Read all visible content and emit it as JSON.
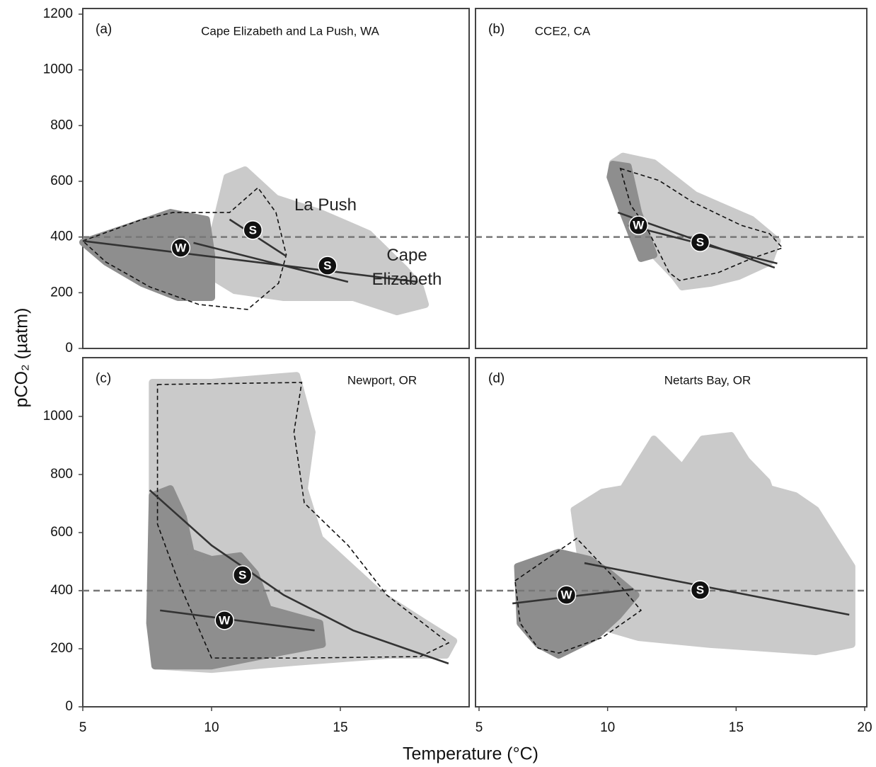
{
  "xlabel": "Temperature (°C)",
  "ylabel": "pCO₂ (µatm)",
  "chart_data": [
    {
      "type": "line",
      "panel": "(a)",
      "title": "Cape Elizabeth and La Push, WA",
      "xlim": [
        5,
        20
      ],
      "ylim": [
        0,
        1200
      ],
      "yticks": [
        0,
        200,
        400,
        600,
        800,
        1000,
        1200
      ],
      "ref_line": 400,
      "annotations": [
        "La Push",
        "Cape Elizabeth"
      ],
      "regions": [
        {
          "color": "#cacaca",
          "x": [
            10.0,
            10.6,
            11.3,
            12.5,
            14.2,
            16.1,
            17.5,
            18.1,
            18.3,
            17.2,
            15.5,
            12.8,
            10.9,
            10.0
          ],
          "y": [
            386,
            615,
            641,
            539,
            488,
            412,
            285,
            221,
            158,
            132,
            183,
            183,
            208,
            259
          ]
        },
        {
          "color": "#8e8e8e",
          "x": [
            5.0,
            6.8,
            8.4,
            9.8,
            10.0,
            10.0,
            8.7,
            7.3,
            5.9
          ],
          "y": [
            381,
            437,
            488,
            463,
            336,
            183,
            183,
            234,
            310
          ]
        }
      ],
      "outline": {
        "x": [
          5.0,
          7.3,
          8.5,
          10.7,
          11.8,
          12.5,
          12.9,
          12.6,
          11.4,
          9.5,
          7.6,
          5.9
        ],
        "y": [
          386,
          463,
          488,
          488,
          577,
          488,
          336,
          234,
          140,
          158,
          221,
          310
        ]
      },
      "lines": [
        {
          "x": [
            5.0,
            18.0
          ],
          "y": [
            386,
            239
          ]
        },
        {
          "x": [
            9.3,
            15.3
          ],
          "y": [
            379,
            239
          ]
        },
        {
          "x": [
            10.7,
            12.9
          ],
          "y": [
            463,
            331
          ]
        }
      ],
      "markers": [
        {
          "label": "W",
          "x": 8.8,
          "y": 361
        },
        {
          "label": "S",
          "x": 14.5,
          "y": 297
        },
        {
          "label": "S",
          "x": 11.6,
          "y": 425
        }
      ]
    },
    {
      "type": "line",
      "panel": "(b)",
      "title": "CCE2, CA",
      "xlim": [
        5,
        20
      ],
      "ylim": [
        0,
        1200
      ],
      "ref_line": 400,
      "annotations": [],
      "regions": [
        {
          "color": "#cacaca",
          "x": [
            10.2,
            10.6,
            11.8,
            13.4,
            15.6,
            16.6,
            16.3,
            15.1,
            14.0,
            12.9,
            12.6,
            11.8,
            10.6,
            10.1
          ],
          "y": [
            666,
            690,
            666,
            551,
            463,
            386,
            310,
            259,
            234,
            221,
            259,
            336,
            514,
            615
          ]
        },
        {
          "color": "#8e8e8e",
          "x": [
            10.2,
            10.8,
            11.2,
            11.8,
            11.3,
            10.6,
            10.1
          ],
          "y": [
            661,
            653,
            488,
            336,
            323,
            488,
            615
          ]
        }
      ],
      "outline": {
        "x": [
          10.5,
          12.0,
          13.3,
          15.2,
          16.3,
          16.8,
          15.6,
          14.3,
          12.8,
          12.4,
          11.5,
          10.9
        ],
        "y": [
          646,
          603,
          526,
          442,
          412,
          361,
          323,
          272,
          244,
          272,
          437,
          514
        ]
      },
      "lines": [
        {
          "x": [
            10.4,
            16.5
          ],
          "y": [
            488,
            290
          ]
        },
        {
          "x": [
            10.8,
            16.6
          ],
          "y": [
            442,
            305
          ]
        }
      ],
      "markers": [
        {
          "label": "W",
          "x": 11.2,
          "y": 442
        },
        {
          "label": "S",
          "x": 13.6,
          "y": 381
        }
      ]
    },
    {
      "type": "line",
      "panel": "(c)",
      "title": "Newport, OR",
      "xlim": [
        5,
        20
      ],
      "ylim": [
        0,
        1200
      ],
      "xticks": [
        5,
        10,
        15
      ],
      "yticks": [
        0,
        200,
        400,
        600,
        800,
        1000
      ],
      "ref_line": 400,
      "annotations": [],
      "regions": [
        {
          "color": "#cacaca",
          "x": [
            7.7,
            10.0,
            13.3,
            13.9,
            13.6,
            14.2,
            16.6,
            18.3,
            19.4,
            19.1,
            16.9,
            13.3,
            10.0,
            7.8,
            7.7
          ],
          "y": [
            1117,
            1117,
            1141,
            946,
            751,
            580,
            385,
            288,
            227,
            178,
            178,
            154,
            129,
            141,
            483
          ]
        },
        {
          "color": "#8e8e8e",
          "x": [
            7.7,
            8.4,
            8.9,
            9.2,
            10.0,
            11.1,
            11.7,
            12.2,
            14.2,
            14.3,
            12.8,
            10.0,
            7.8,
            7.6
          ],
          "y": [
            727,
            751,
            654,
            532,
            507,
            520,
            459,
            337,
            288,
            215,
            190,
            141,
            141,
            288
          ]
        }
      ],
      "outline": {
        "x": [
          7.9,
          13.5,
          13.2,
          13.6,
          15.3,
          16.8,
          19.2,
          18.1,
          13.6,
          10.0,
          8.7,
          7.9
        ],
        "y": [
          1110,
          1117,
          946,
          702,
          556,
          385,
          220,
          173,
          168,
          168,
          434,
          629
        ]
      },
      "lines": [
        {
          "x": [
            7.6,
            10.0,
            12.8,
            15.5,
            19.2
          ],
          "y": [
            746,
            556,
            385,
            263,
            149
          ]
        },
        {
          "x": [
            8.0,
            14.0
          ],
          "y": [
            332,
            263
          ]
        }
      ],
      "markers": [
        {
          "label": "S",
          "x": 11.2,
          "y": 454
        },
        {
          "label": "W",
          "x": 10.5,
          "y": 298
        }
      ]
    },
    {
      "type": "line",
      "panel": "(d)",
      "title": "Netarts Bay, OR",
      "xlim": [
        5,
        20
      ],
      "ylim": [
        0,
        1200
      ],
      "xticks": [
        5,
        10,
        15,
        20
      ],
      "ref_line": 400,
      "annotations": [],
      "regions": [
        {
          "color": "#cacaca",
          "x": [
            8.7,
            9.8,
            10.6,
            11.8,
            12.9,
            13.7,
            14.8,
            15.4,
            16.2,
            16.3,
            17.3,
            18.1,
            19.5,
            19.5,
            18.1,
            14.0,
            11.2,
            9.3
          ],
          "y": [
            678,
            739,
            751,
            922,
            824,
            922,
            934,
            849,
            776,
            751,
            727,
            678,
            483,
            215,
            190,
            215,
            239,
            288
          ]
        },
        {
          "color": "#8e8e8e",
          "x": [
            6.5,
            8.1,
            9.3,
            10.1,
            11.1,
            10.4,
            9.5,
            8.1,
            7.3,
            6.6
          ],
          "y": [
            483,
            532,
            507,
            459,
            385,
            312,
            239,
            178,
            215,
            288
          ]
        }
      ],
      "outline": {
        "x": [
          6.4,
          8.8,
          10.1,
          11.3,
          9.8,
          8.1,
          7.3,
          6.6
        ],
        "y": [
          434,
          580,
          459,
          332,
          239,
          185,
          202,
          288
        ]
      },
      "lines": [
        {
          "x": [
            6.3,
            11.0
          ],
          "y": [
            356,
            405
          ]
        },
        {
          "x": [
            9.1,
            19.4
          ],
          "y": [
            495,
            317
          ]
        }
      ],
      "markers": [
        {
          "label": "W",
          "x": 8.4,
          "y": 385
        },
        {
          "label": "S",
          "x": 13.6,
          "y": 402
        }
      ]
    }
  ]
}
